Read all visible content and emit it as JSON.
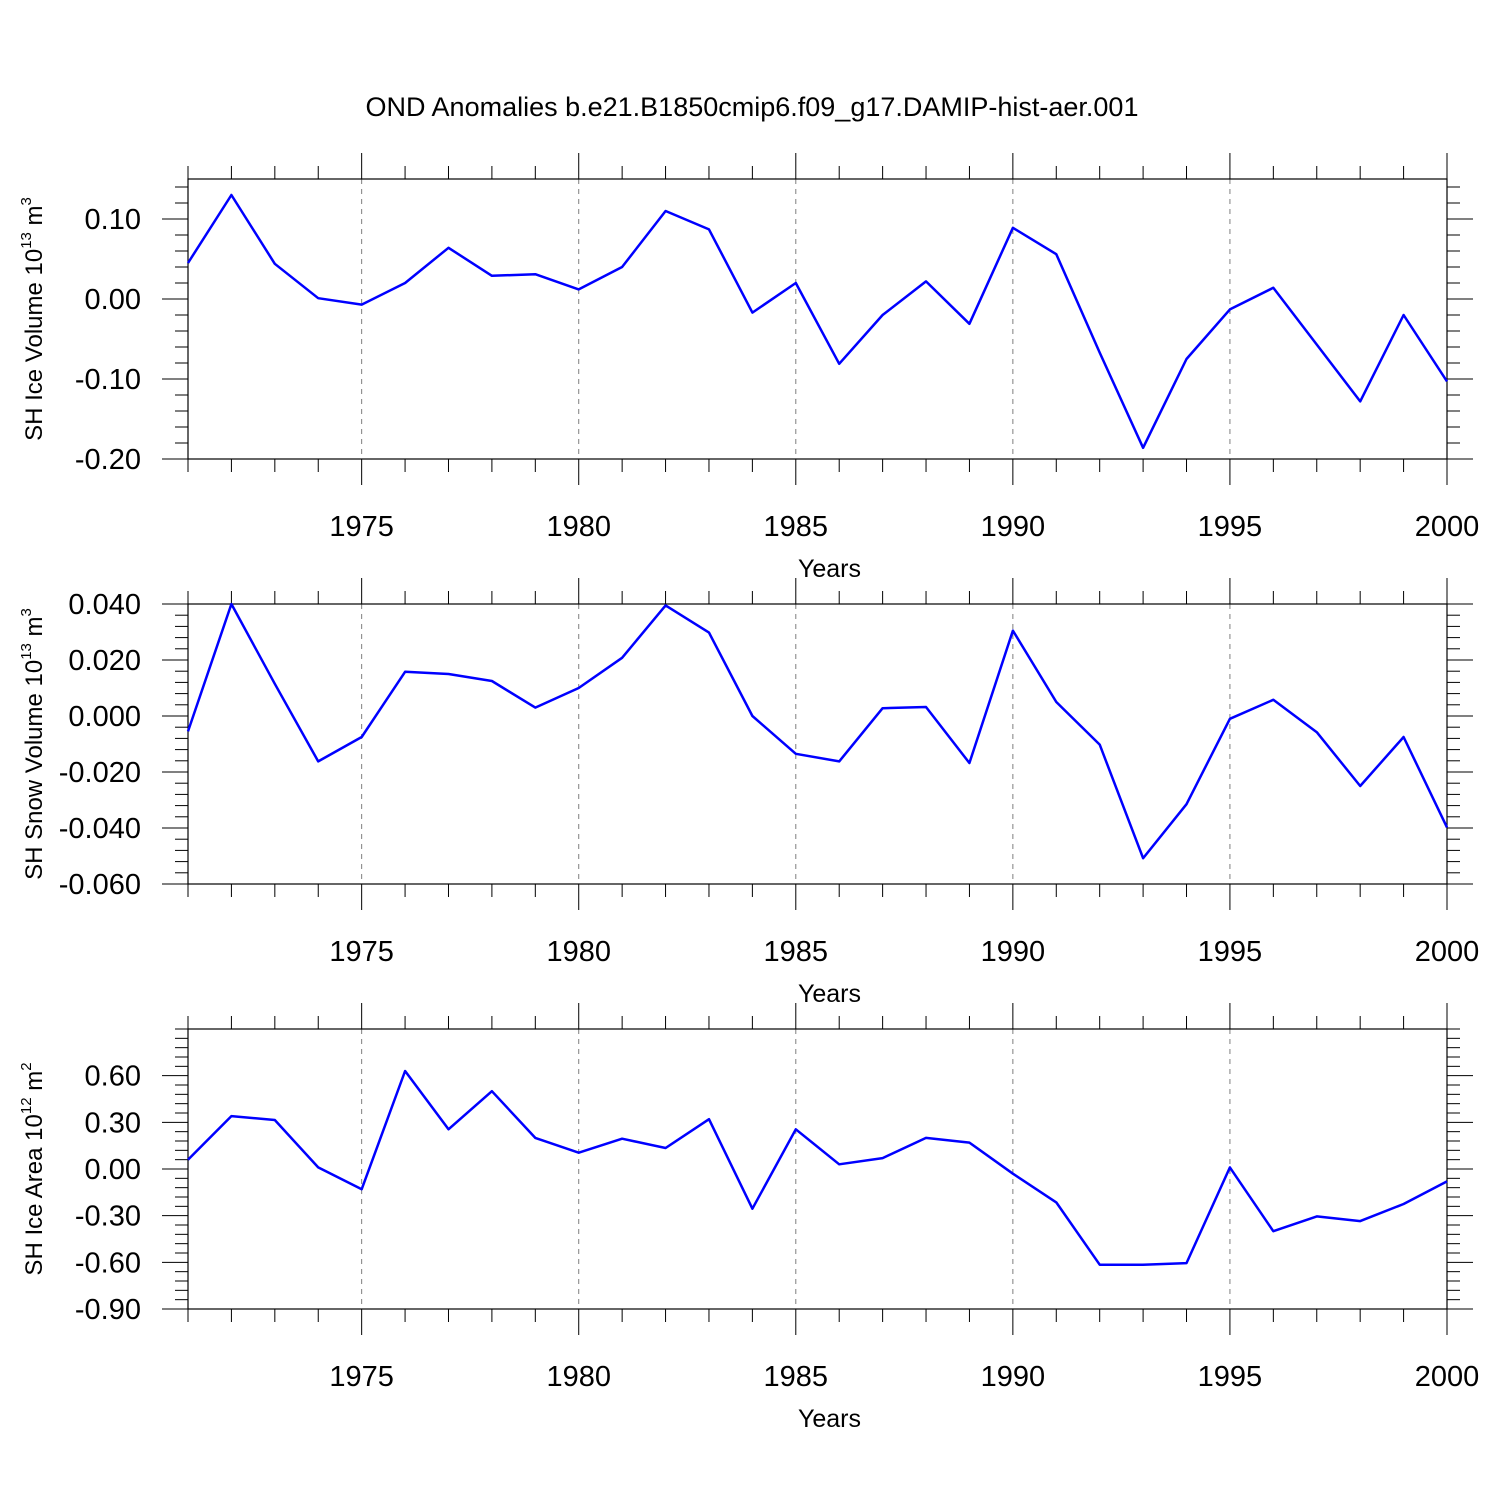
{
  "figure": {
    "title": "OND Anomalies b.e21.B1850cmip6.f09_g17.DAMIP-hist-aer.001"
  },
  "chart_data": [
    {
      "type": "line",
      "xlabel": "Years",
      "ylabel": "SH Ice Volume 10",
      "ylabel_exp": "13",
      "ylabel_unit": " m",
      "ylabel_unit_exp": "3",
      "xlim": [
        1971,
        2000
      ],
      "ylim": [
        -0.2,
        0.15
      ],
      "xticks": [
        1975,
        1980,
        1985,
        1990,
        1995,
        2000
      ],
      "yticks": [
        -0.2,
        -0.1,
        0.0,
        0.1
      ],
      "ytick_labels": [
        "-0.20",
        "-0.10",
        "0.00",
        "0.10"
      ],
      "grid": "vertical dashed at labeled years",
      "line_color": "#0000ff",
      "x": [
        1971,
        1972,
        1973,
        1974,
        1975,
        1976,
        1977,
        1978,
        1979,
        1980,
        1981,
        1982,
        1983,
        1984,
        1985,
        1986,
        1987,
        1988,
        1989,
        1990,
        1991,
        1992,
        1993,
        1994,
        1995,
        1996,
        1997,
        1998,
        1999,
        2000
      ],
      "values": [
        0.045,
        0.13,
        0.044,
        0.001,
        -0.007,
        0.02,
        0.064,
        0.029,
        0.031,
        0.012,
        0.04,
        0.11,
        0.087,
        -0.017,
        0.02,
        -0.081,
        -0.02,
        0.022,
        -0.031,
        0.089,
        0.056,
        -0.067,
        -0.186,
        -0.075,
        -0.013,
        0.014,
        -0.057,
        -0.128,
        -0.02,
        -0.103
      ]
    },
    {
      "type": "line",
      "xlabel": "Years",
      "ylabel": "SH Snow Volume 10",
      "ylabel_exp": "13",
      "ylabel_unit": " m",
      "ylabel_unit_exp": "3",
      "xlim": [
        1971,
        2000
      ],
      "ylim": [
        -0.06,
        0.04
      ],
      "xticks": [
        1975,
        1980,
        1985,
        1990,
        1995,
        2000
      ],
      "yticks": [
        -0.06,
        -0.04,
        -0.02,
        0.0,
        0.02,
        0.04
      ],
      "ytick_labels": [
        "-0.060",
        "-0.040",
        "-0.020",
        "0.000",
        "0.020",
        "0.040"
      ],
      "grid": "vertical dashed at labeled years",
      "line_color": "#0000ff",
      "x": [
        1971,
        1972,
        1973,
        1974,
        1975,
        1976,
        1977,
        1978,
        1979,
        1980,
        1981,
        1982,
        1983,
        1984,
        1985,
        1986,
        1987,
        1988,
        1989,
        1990,
        1991,
        1992,
        1993,
        1994,
        1995,
        1996,
        1997,
        1998,
        1999,
        2000
      ],
      "values": [
        -0.0055,
        0.04,
        0.0115,
        -0.0162,
        -0.0075,
        0.0158,
        0.015,
        0.0125,
        0.003,
        0.01,
        0.0208,
        0.0395,
        0.0298,
        0.0,
        -0.0135,
        -0.0162,
        0.0028,
        0.0032,
        -0.0168,
        0.0305,
        0.005,
        -0.0102,
        -0.0508,
        -0.0315,
        -0.001,
        0.0058,
        -0.0058,
        -0.025,
        -0.0075,
        -0.0398
      ]
    },
    {
      "type": "line",
      "xlabel": "Years",
      "ylabel": "SH Ice Area 10",
      "ylabel_exp": "12",
      "ylabel_unit": " m",
      "ylabel_unit_exp": "2",
      "xlim": [
        1971,
        2000
      ],
      "ylim": [
        -0.9,
        0.9
      ],
      "xticks": [
        1975,
        1980,
        1985,
        1990,
        1995,
        2000
      ],
      "yticks": [
        -0.9,
        -0.6,
        -0.3,
        0.0,
        0.3,
        0.6
      ],
      "ytick_labels": [
        "-0.90",
        "-0.60",
        "-0.30",
        "0.00",
        "0.30",
        "0.60"
      ],
      "grid": "vertical dashed at labeled years",
      "line_color": "#0000ff",
      "x": [
        1971,
        1972,
        1973,
        1974,
        1975,
        1976,
        1977,
        1978,
        1979,
        1980,
        1981,
        1982,
        1983,
        1984,
        1985,
        1986,
        1987,
        1988,
        1989,
        1990,
        1991,
        1992,
        1993,
        1994,
        1995,
        1996,
        1997,
        1998,
        1999,
        2000
      ],
      "values": [
        0.06,
        0.34,
        0.315,
        0.01,
        -0.13,
        0.63,
        0.255,
        0.5,
        0.2,
        0.105,
        0.195,
        0.135,
        0.32,
        -0.255,
        0.255,
        0.03,
        0.07,
        0.2,
        0.17,
        -0.03,
        -0.215,
        -0.615,
        -0.615,
        -0.605,
        0.01,
        -0.4,
        -0.305,
        -0.335,
        -0.225,
        -0.08
      ]
    }
  ]
}
